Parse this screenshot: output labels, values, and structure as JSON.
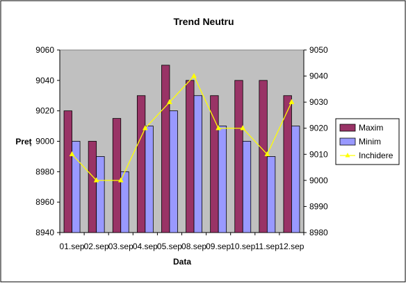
{
  "chart_data": {
    "type": "bar",
    "title": "Trend Neutru",
    "xlabel": "Data",
    "ylabel": "Preț",
    "categories": [
      "01.sep",
      "02.sep",
      "03.sep",
      "04.sep",
      "05.sep",
      "08.sep",
      "09.sep",
      "10.sep",
      "11.sep",
      "12.sep"
    ],
    "ylim": [
      8940,
      9060
    ],
    "yticks": [
      "8940",
      "8960",
      "8980",
      "9000",
      "9020",
      "9040",
      "9060"
    ],
    "y2lim": [
      8980,
      9050
    ],
    "y2ticks": [
      "8980",
      "8990",
      "9000",
      "9010",
      "9020",
      "9030",
      "9040",
      "9050"
    ],
    "grid": false,
    "legend_position": "right",
    "series": [
      {
        "name": "Maxim",
        "type": "bar",
        "axis": "left",
        "color": "#993366",
        "values": [
          9020,
          9000,
          9015,
          9030,
          9050,
          9040,
          9030,
          9040,
          9040,
          9030
        ]
      },
      {
        "name": "Minim",
        "type": "bar",
        "axis": "left",
        "color": "#9999ff",
        "values": [
          9000,
          8990,
          8980,
          9010,
          9020,
          9030,
          9010,
          9000,
          8990,
          9010
        ]
      },
      {
        "name": "Inchidere",
        "type": "line",
        "axis": "right",
        "color": "#ffff00",
        "values": [
          9010,
          9000,
          9000,
          9020,
          9030,
          9040,
          9020,
          9020,
          9010,
          9030
        ]
      }
    ],
    "plot_background": "#c0c0c0"
  }
}
